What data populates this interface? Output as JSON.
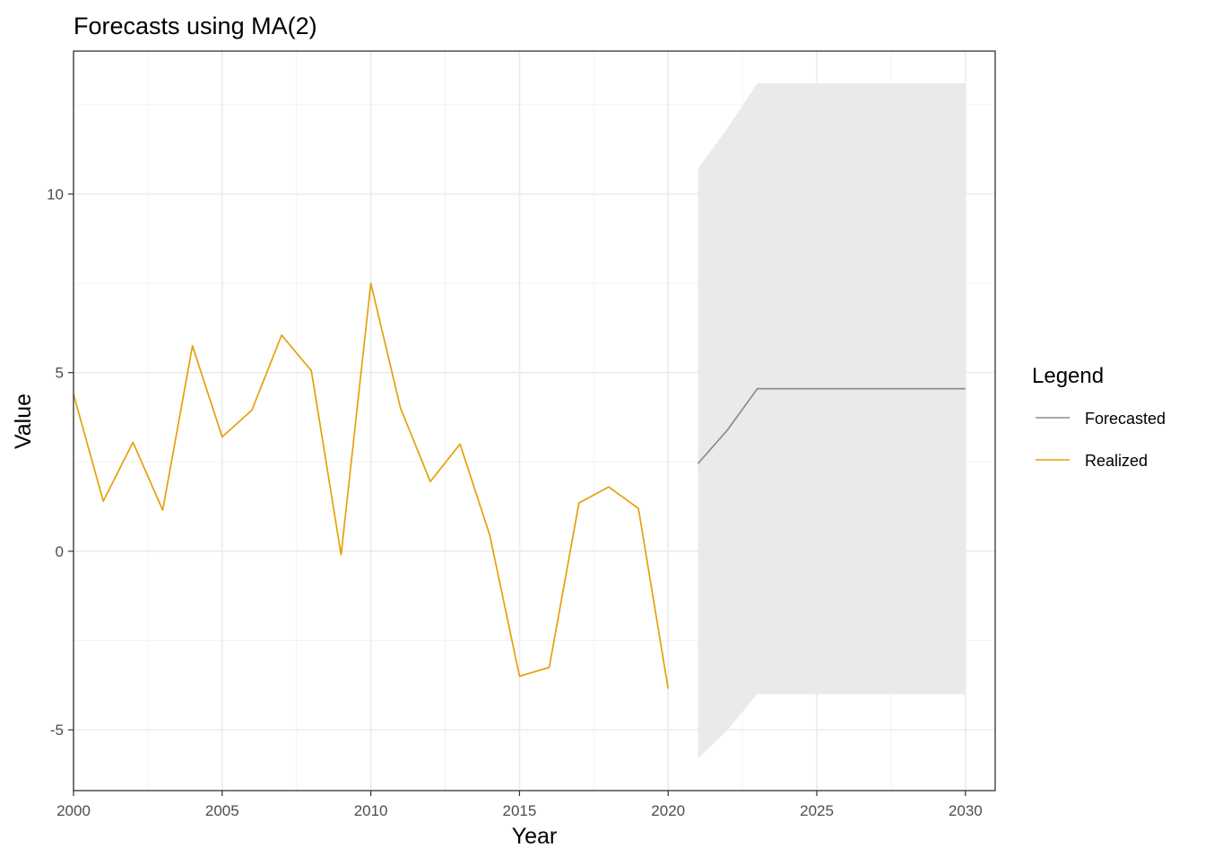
{
  "chart_data": {
    "type": "line",
    "title": "Forecasts using MA(2)",
    "xlabel": "Year",
    "ylabel": "Value",
    "xlim": [
      2000,
      2031
    ],
    "ylim": [
      -6.7,
      14.0
    ],
    "x_ticks": [
      2000,
      2005,
      2010,
      2015,
      2020,
      2025,
      2030
    ],
    "y_ticks": [
      -5,
      0,
      5,
      10
    ],
    "grid": true,
    "legend": {
      "title": "Legend",
      "position": "right",
      "entries": [
        {
          "label": "Forecasted",
          "color": "#8c8c8c"
        },
        {
          "label": "Realized",
          "color": "#e6a00a"
        }
      ]
    },
    "series": [
      {
        "name": "Realized",
        "color": "#e6a00a",
        "x": [
          2000,
          2001,
          2002,
          2003,
          2004,
          2005,
          2006,
          2007,
          2008,
          2009,
          2010,
          2011,
          2012,
          2013,
          2014,
          2015,
          2016,
          2017,
          2018,
          2019,
          2020
        ],
        "values": [
          4.4,
          1.4,
          3.05,
          1.15,
          5.75,
          3.2,
          3.95,
          6.05,
          5.05,
          -0.1,
          7.5,
          4.0,
          1.95,
          3.0,
          0.45,
          -3.5,
          -3.25,
          1.35,
          1.8,
          1.2,
          -3.85
        ]
      },
      {
        "name": "Forecasted",
        "color": "#8c8c8c",
        "x": [
          2021,
          2022,
          2023,
          2024,
          2025,
          2026,
          2027,
          2028,
          2029,
          2030
        ],
        "values": [
          2.45,
          3.4,
          4.55,
          4.55,
          4.55,
          4.55,
          4.55,
          4.55,
          4.55,
          4.55
        ]
      }
    ],
    "band": {
      "color": "#e8e8e8",
      "x": [
        2021,
        2022,
        2023,
        2024,
        2025,
        2026,
        2027,
        2028,
        2029,
        2030
      ],
      "lower": [
        -5.8,
        -5.0,
        -4.0,
        -4.0,
        -4.0,
        -4.0,
        -4.0,
        -4.0,
        -4.0,
        -4.0
      ],
      "upper": [
        10.7,
        11.85,
        13.1,
        13.1,
        13.1,
        13.1,
        13.1,
        13.1,
        13.1,
        13.1
      ]
    }
  }
}
